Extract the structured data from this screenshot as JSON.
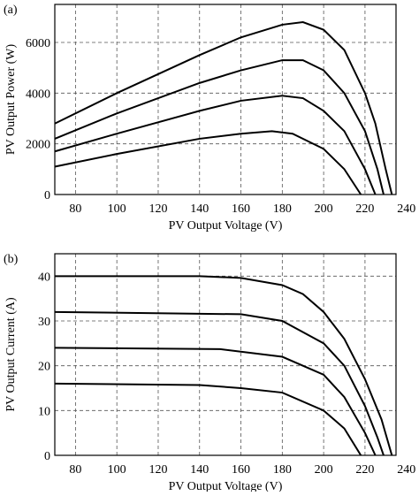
{
  "chart_data": [
    {
      "type": "line",
      "title": "(a)",
      "xlabel": "PV Output Voltage (V)",
      "ylabel": "PV Output Power (W)",
      "xlim": [
        70,
        235
      ],
      "xticks": [
        80,
        100,
        120,
        140,
        160,
        180,
        200,
        220,
        240
      ],
      "ylim": [
        0,
        7500
      ],
      "yticks": [
        0,
        2000,
        4000,
        6000
      ],
      "grid": true,
      "series": [
        {
          "color": "#000000",
          "x": [
            70,
            100,
            140,
            160,
            180,
            190,
            200,
            210,
            220,
            225,
            230,
            233
          ],
          "values": [
            2800,
            4000,
            5500,
            6200,
            6700,
            6800,
            6500,
            5700,
            4000,
            2800,
            1000,
            0
          ]
        },
        {
          "color": "#000000",
          "x": [
            70,
            100,
            140,
            160,
            180,
            190,
            200,
            210,
            220,
            226,
            229
          ],
          "values": [
            2200,
            3200,
            4400,
            4900,
            5300,
            5300,
            4900,
            4000,
            2500,
            1000,
            0
          ]
        },
        {
          "color": "#000000",
          "x": [
            70,
            100,
            140,
            160,
            180,
            190,
            200,
            210,
            220,
            225
          ],
          "values": [
            1700,
            2400,
            3300,
            3700,
            3900,
            3800,
            3300,
            2500,
            1000,
            0
          ]
        },
        {
          "color": "#000000",
          "x": [
            70,
            100,
            140,
            160,
            175,
            185,
            200,
            210,
            218
          ],
          "values": [
            1100,
            1600,
            2200,
            2400,
            2500,
            2400,
            1800,
            1000,
            0
          ]
        }
      ]
    },
    {
      "type": "line",
      "title": "(b)",
      "xlabel": "PV Output Voltage (V)",
      "ylabel": "PV Output Current (A)",
      "xlim": [
        70,
        235
      ],
      "xticks": [
        80,
        100,
        120,
        140,
        160,
        180,
        200,
        220,
        240
      ],
      "ylim": [
        0,
        45
      ],
      "yticks": [
        0,
        10,
        20,
        30,
        40
      ],
      "grid": true,
      "series": [
        {
          "color": "#000000",
          "x": [
            70,
            140,
            160,
            180,
            190,
            200,
            210,
            220,
            228,
            233
          ],
          "values": [
            40,
            40,
            39.6,
            38,
            36,
            32,
            26,
            17,
            8,
            0
          ]
        },
        {
          "color": "#000000",
          "x": [
            70,
            160,
            180,
            200,
            210,
            220,
            226,
            229
          ],
          "values": [
            32,
            31.5,
            30,
            25,
            20,
            11,
            4,
            0
          ]
        },
        {
          "color": "#000000",
          "x": [
            70,
            150,
            180,
            200,
            210,
            220,
            225
          ],
          "values": [
            24,
            23.7,
            22,
            18,
            13,
            5,
            0
          ]
        },
        {
          "color": "#000000",
          "x": [
            70,
            140,
            160,
            180,
            200,
            210,
            218
          ],
          "values": [
            16,
            15.7,
            15,
            14,
            10,
            6,
            0
          ]
        }
      ]
    }
  ]
}
